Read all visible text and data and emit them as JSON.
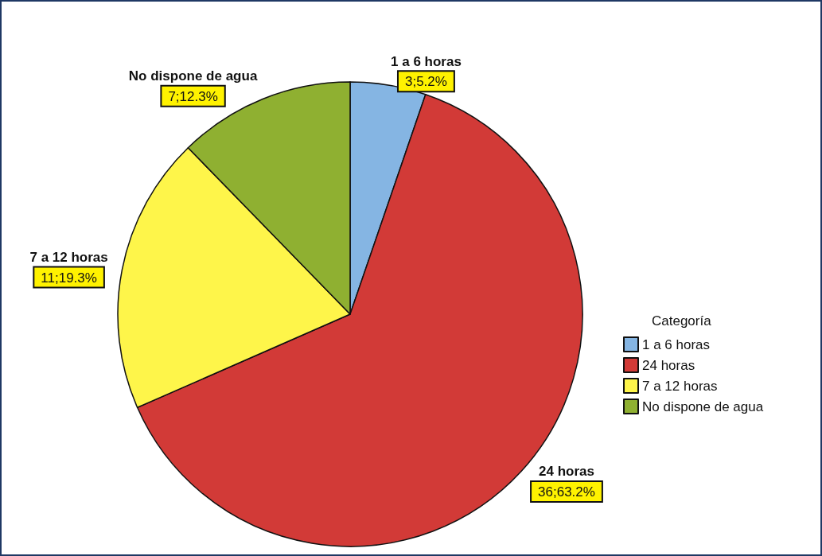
{
  "chart_data": {
    "type": "pie",
    "categories": [
      "1 a 6 horas",
      "24 horas",
      "7 a 12 horas",
      "No dispone de agua"
    ],
    "values": [
      3,
      36,
      11,
      7
    ],
    "colors": [
      "#85b5e3",
      "#d23a37",
      "#fef54a",
      "#8fb031"
    ],
    "value_labels": [
      "3;5.2%",
      "36;63.2%",
      "11;19.3%",
      "7;12.3%"
    ],
    "legend_title": "Categoría",
    "legend": "right"
  }
}
